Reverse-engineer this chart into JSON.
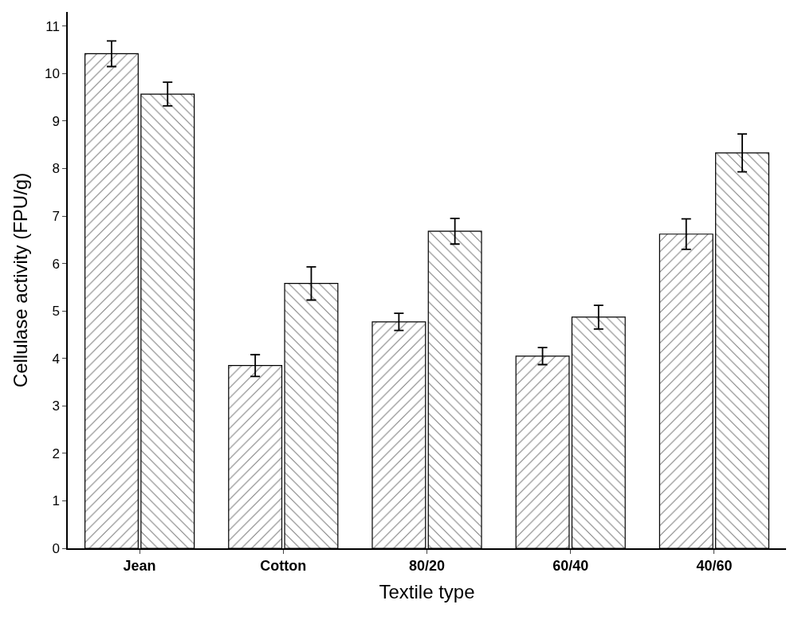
{
  "chart_data": {
    "type": "bar",
    "xlabel": "Textile type",
    "ylabel": "Cellulase activity (FPU/g)",
    "categories": [
      "Jean",
      "Cotton",
      "80/20",
      "60/40",
      "40/60"
    ],
    "series": [
      {
        "color": "#000000",
        "values": [
          10.42,
          3.85,
          4.77,
          4.05,
          6.62
        ],
        "errors": [
          0.27,
          0.23,
          0.18,
          0.18,
          0.32
        ]
      },
      {
        "color": "#000000",
        "values": [
          9.57,
          5.58,
          6.68,
          4.87,
          8.33
        ],
        "errors": [
          0.25,
          0.35,
          0.27,
          0.25,
          0.4
        ]
      }
    ],
    "ylim": [
      0,
      11.3
    ],
    "yticks": [
      0,
      1,
      2,
      3,
      4,
      5,
      6,
      7,
      8,
      9,
      10,
      11
    ]
  }
}
